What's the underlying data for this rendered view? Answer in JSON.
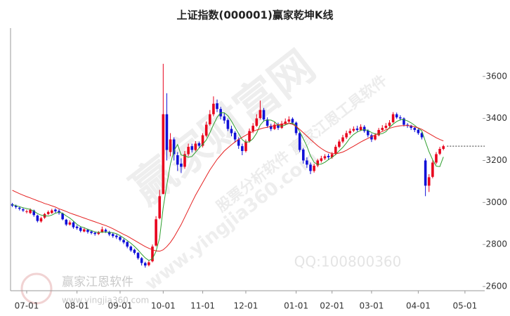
{
  "chart_data": {
    "type": "candlestick",
    "title": "上证指数(000001)赢家乾坤K线",
    "categories": [
      null,
      null,
      null,
      null,
      "07-01",
      null,
      null,
      null,
      null,
      null,
      null,
      null,
      null,
      null,
      null,
      null,
      null,
      null,
      "08-01",
      null,
      null,
      null,
      null,
      null,
      null,
      null,
      null,
      null,
      null,
      null,
      "09-01",
      null,
      null,
      null,
      null,
      null,
      null,
      null,
      null,
      null,
      null,
      null,
      "10-01",
      null,
      null,
      null,
      null,
      null,
      null,
      null,
      null,
      null,
      null,
      "11-01",
      null,
      null,
      null,
      null,
      null,
      null,
      null,
      null,
      null,
      null,
      null,
      "12-01",
      null,
      null,
      null,
      null,
      null,
      null,
      null,
      null,
      null,
      null,
      null,
      null,
      null,
      "01-01",
      null,
      null,
      null,
      null,
      null,
      null,
      null,
      null,
      null,
      "02-01",
      null,
      null,
      null,
      null,
      null,
      null,
      null,
      null,
      null,
      null,
      "03-01",
      null,
      null,
      null,
      null,
      null,
      null,
      null,
      null,
      null,
      null,
      null,
      null,
      "04-01",
      null,
      null,
      null,
      null,
      null,
      null,
      null,
      null,
      null,
      null,
      null,
      null,
      "05-01",
      null,
      null,
      null,
      null,
      null
    ],
    "open": [
      2992,
      2984,
      2975,
      2968,
      2955,
      2950,
      2962,
      2938,
      2910,
      2928,
      2945,
      2950,
      2966,
      2960,
      2948,
      2918,
      2895,
      2905,
      2885,
      2880,
      2862,
      2870,
      2862,
      2856,
      2850,
      2858,
      2870,
      2860,
      2850,
      2842,
      2836,
      2822,
      2812,
      2790,
      2775,
      2760,
      2735,
      2712,
      2702,
      2720,
      2795,
      2925,
      3040,
      3420,
      3240,
      3300,
      3225,
      3185,
      3170,
      3230,
      3268,
      3250,
      3282,
      3270,
      3318,
      3372,
      3420,
      3472,
      3445,
      3410,
      3392,
      3350,
      3332,
      3300,
      3268,
      3245,
      3292,
      3340,
      3365,
      3402,
      3440,
      3395,
      3365,
      3350,
      3372,
      3355,
      3375,
      3385,
      3398,
      3380,
      3330,
      3252,
      3200,
      3180,
      3150,
      3176,
      3198,
      3210,
      3222,
      3215,
      3232,
      3265,
      3290,
      3310,
      3330,
      3342,
      3352,
      3345,
      3360,
      3342,
      3320,
      3300,
      3320,
      3345,
      3355,
      3365,
      3382,
      3420,
      3405,
      3400,
      3370,
      3366,
      3355,
      3346,
      3330,
      3200,
      3080,
      3122,
      3190,
      3232,
      3255,
      null,
      null,
      null,
      null,
      null,
      null,
      null,
      null,
      null,
      null,
      null
    ],
    "close": [
      2985,
      2978,
      2970,
      2962,
      2958,
      2965,
      2940,
      2912,
      2925,
      2945,
      2955,
      2962,
      2958,
      2950,
      2920,
      2895,
      2905,
      2882,
      2878,
      2865,
      2872,
      2860,
      2855,
      2850,
      2858,
      2872,
      2862,
      2848,
      2840,
      2835,
      2822,
      2810,
      2790,
      2772,
      2760,
      2735,
      2712,
      2700,
      2715,
      2790,
      2920,
      3030,
      3420,
      3250,
      3300,
      3230,
      3180,
      3170,
      3230,
      3265,
      3250,
      3280,
      3270,
      3320,
      3370,
      3420,
      3470,
      3445,
      3410,
      3390,
      3350,
      3330,
      3300,
      3270,
      3245,
      3290,
      3340,
      3365,
      3400,
      3440,
      3395,
      3365,
      3350,
      3370,
      3355,
      3375,
      3385,
      3395,
      3380,
      3330,
      3250,
      3200,
      3180,
      3150,
      3175,
      3200,
      3210,
      3220,
      3215,
      3230,
      3265,
      3290,
      3310,
      3330,
      3340,
      3350,
      3345,
      3360,
      3340,
      3320,
      3300,
      3320,
      3345,
      3355,
      3365,
      3380,
      3420,
      3405,
      3400,
      3370,
      3365,
      3355,
      3345,
      3330,
      3310,
      3080,
      3120,
      3190,
      3230,
      3255,
      3268,
      null,
      null,
      null,
      null,
      null,
      null,
      null,
      null,
      null,
      null,
      null
    ],
    "high": [
      2998,
      2990,
      2982,
      2975,
      2966,
      2972,
      2966,
      2942,
      2932,
      2950,
      2962,
      2970,
      2972,
      2968,
      2952,
      2922,
      2915,
      2910,
      2892,
      2886,
      2880,
      2875,
      2868,
      2862,
      2864,
      2885,
      2876,
      2865,
      2856,
      2848,
      2840,
      2828,
      2815,
      2795,
      2780,
      2764,
      2740,
      2718,
      2722,
      2800,
      2935,
      3060,
      3660,
      3520,
      3330,
      3310,
      3240,
      3210,
      3245,
      3280,
      3280,
      3292,
      3290,
      3330,
      3385,
      3440,
      3505,
      3490,
      3455,
      3425,
      3400,
      3365,
      3340,
      3310,
      3280,
      3300,
      3352,
      3378,
      3420,
      3485,
      3450,
      3405,
      3375,
      3382,
      3380,
      3388,
      3400,
      3410,
      3405,
      3385,
      3335,
      3260,
      3215,
      3190,
      3185,
      3208,
      3222,
      3230,
      3232,
      3240,
      3275,
      3300,
      3322,
      3342,
      3352,
      3362,
      3365,
      3372,
      3368,
      3348,
      3328,
      3330,
      3355,
      3368,
      3378,
      3392,
      3430,
      3428,
      3415,
      3405,
      3378,
      3370,
      3362,
      3350,
      3335,
      3210,
      3135,
      3200,
      3240,
      3265,
      3275,
      null,
      null,
      null,
      null,
      null,
      null,
      null,
      null,
      null,
      null,
      null
    ],
    "low": [
      2978,
      2970,
      2962,
      2955,
      2948,
      2945,
      2932,
      2905,
      2904,
      2922,
      2940,
      2946,
      2950,
      2942,
      2915,
      2888,
      2890,
      2875,
      2870,
      2858,
      2858,
      2852,
      2848,
      2842,
      2845,
      2855,
      2855,
      2840,
      2832,
      2826,
      2815,
      2802,
      2782,
      2765,
      2752,
      2728,
      2700,
      2690,
      2696,
      2715,
      2790,
      2920,
      3040,
      3200,
      3220,
      3200,
      3150,
      3140,
      3160,
      3220,
      3238,
      3244,
      3258,
      3262,
      3310,
      3365,
      3410,
      3430,
      3395,
      3375,
      3340,
      3315,
      3285,
      3255,
      3225,
      3238,
      3285,
      3330,
      3360,
      3395,
      3385,
      3355,
      3340,
      3345,
      3345,
      3350,
      3368,
      3378,
      3370,
      3320,
      3240,
      3185,
      3165,
      3135,
      3142,
      3168,
      3190,
      3202,
      3205,
      3208,
      3225,
      3258,
      3282,
      3302,
      3322,
      3335,
      3338,
      3340,
      3332,
      3310,
      3288,
      3295,
      3315,
      3340,
      3350,
      3360,
      3378,
      3398,
      3390,
      3362,
      3355,
      3345,
      3335,
      3322,
      3300,
      3030,
      3050,
      3115,
      3182,
      3225,
      3248,
      null,
      null,
      null,
      null,
      null,
      null,
      null,
      null,
      null,
      null,
      null
    ],
    "up_color": "#e8001c",
    "down_color": "#1010d8",
    "lines": [
      {
        "color": "#2e9e2e",
        "values": [
          2990,
          2985,
          2980,
          2975,
          2971,
          2967,
          2959,
          2947,
          2940,
          2937,
          2935,
          2940,
          2949,
          2954,
          2949,
          2936,
          2926,
          2912,
          2896,
          2885,
          2880,
          2872,
          2866,
          2860,
          2857,
          2859,
          2859,
          2858,
          2856,
          2851,
          2842,
          2831,
          2819,
          2806,
          2791,
          2774,
          2754,
          2736,
          2724,
          2732,
          2767,
          2831,
          2975,
          3082,
          3184,
          3246,
          3276,
          3226,
          3222,
          3215,
          3219,
          3239,
          3259,
          3277,
          3298,
          3332,
          3370,
          3405,
          3427,
          3427,
          3413,
          3387,
          3357,
          3328,
          3299,
          3287,
          3289,
          3304,
          3330,
          3368,
          3388,
          3393,
          3392,
          3384,
          3367,
          3363,
          3369,
          3376,
          3378,
          3365,
          3338,
          3303,
          3268,
          3222,
          3191,
          3181,
          3183,
          3191,
          3204,
          3215,
          3228,
          3246,
          3262,
          3283,
          3307,
          3324,
          3335,
          3343,
          3347,
          3343,
          3333,
          3326,
          3325,
          3328,
          3337,
          3357,
          3373,
          3385,
          3394,
          3395,
          3388,
          3379,
          3367,
          3353,
          3341,
          3290,
          3242,
          3203,
          3173,
          3171,
          3217,
          null,
          null,
          null,
          null,
          null,
          null,
          null,
          null,
          null,
          null,
          null
        ]
      },
      {
        "color": "#e52020",
        "values": [
          3058,
          3050,
          3042,
          3035,
          3028,
          3022,
          3015,
          3008,
          3002,
          2995,
          2990,
          2984,
          2978,
          2970,
          2964,
          2957,
          2950,
          2944,
          2938,
          2932,
          2926,
          2920,
          2914,
          2908,
          2902,
          2896,
          2890,
          2883,
          2875,
          2866,
          2857,
          2848,
          2840,
          2830,
          2820,
          2810,
          2800,
          2790,
          2782,
          2775,
          2770,
          2768,
          2775,
          2790,
          2810,
          2835,
          2865,
          2895,
          2930,
          2965,
          3000,
          3035,
          3065,
          3095,
          3125,
          3155,
          3180,
          3205,
          3225,
          3245,
          3260,
          3275,
          3288,
          3300,
          3310,
          3320,
          3330,
          3338,
          3345,
          3350,
          3355,
          3358,
          3362,
          3366,
          3370,
          3373,
          3375,
          3376,
          3372,
          3362,
          3348,
          3332,
          3316,
          3300,
          3285,
          3270,
          3257,
          3246,
          3238,
          3233,
          3232,
          3235,
          3240,
          3248,
          3258,
          3268,
          3278,
          3288,
          3297,
          3305,
          3313,
          3321,
          3330,
          3338,
          3346,
          3353,
          3358,
          3362,
          3365,
          3366,
          3366,
          3364,
          3360,
          3355,
          3348,
          3338,
          3328,
          3318,
          3308,
          3300,
          3293,
          null,
          null,
          null,
          null,
          null,
          null,
          null,
          null,
          null,
          null,
          null
        ]
      }
    ],
    "ylim": [
      2580,
      3830
    ],
    "yticks": [
      2600,
      2800,
      3000,
      3200,
      3400,
      3600
    ],
    "grid": false,
    "last_price_line": true,
    "watermarks": [
      "赢家财富网",
      "股票分析软件 赢家江恩工具软件",
      "www.yingjia360.com",
      "QQ:100800360"
    ],
    "logo": {
      "name": "赢家江恩软件",
      "url": "www.yingjia360.com"
    }
  }
}
